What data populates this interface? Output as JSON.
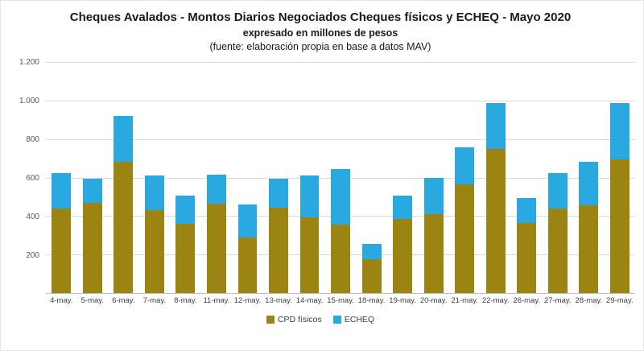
{
  "page": {
    "title": "Cheques Avalados - Montos Diarios Negociados Cheques físicos y ECHEQ - Mayo 2020",
    "subtitle": "expresado en millones de pesos",
    "source": "(fuente: elaboración propia en base a datos MAV)"
  },
  "chart_data": {
    "type": "bar",
    "stacked": true,
    "title": "Cheques Avalados - Montos Diarios Negociados Cheques físicos y ECHEQ - Mayo 2020",
    "subtitle": "expresado en millones de pesos",
    "source": "(fuente: elaboración propia en base a datos MAV)",
    "categories": [
      "4-may.",
      "5-may.",
      "6-may.",
      "7-may.",
      "8-may.",
      "11-may.",
      "12-may.",
      "13-may.",
      "14-may.",
      "15-may.",
      "18-may.",
      "19-may.",
      "20-may.",
      "21-may.",
      "22-may.",
      "26-may.",
      "27-may.",
      "28-may.",
      "29-may."
    ],
    "series": [
      {
        "name": "CPD físicos",
        "color": "#9C8412",
        "values": [
          440,
          470,
          680,
          430,
          360,
          465,
          290,
          445,
          395,
          355,
          175,
          385,
          410,
          565,
          750,
          365,
          440,
          455,
          695
        ]
      },
      {
        "name": "ECHEQ",
        "color": "#29A9E0",
        "values": [
          185,
          125,
          240,
          180,
          145,
          150,
          170,
          150,
          215,
          290,
          80,
          120,
          190,
          190,
          235,
          130,
          185,
          225,
          290
        ]
      }
    ],
    "ylim": [
      0,
      1200
    ],
    "yticks": [
      {
        "value": 1200,
        "label": "1.200"
      },
      {
        "value": 1000,
        "label": "1.000"
      },
      {
        "value": 800,
        "label": "800"
      },
      {
        "value": 600,
        "label": "600"
      },
      {
        "value": 400,
        "label": "400"
      },
      {
        "value": 200,
        "label": "200"
      }
    ],
    "grid": true,
    "legend_position": "bottom",
    "colors": {
      "grid": "#D9D9D9",
      "axis": "#BFBFBF",
      "tick_text": "#595959"
    }
  }
}
